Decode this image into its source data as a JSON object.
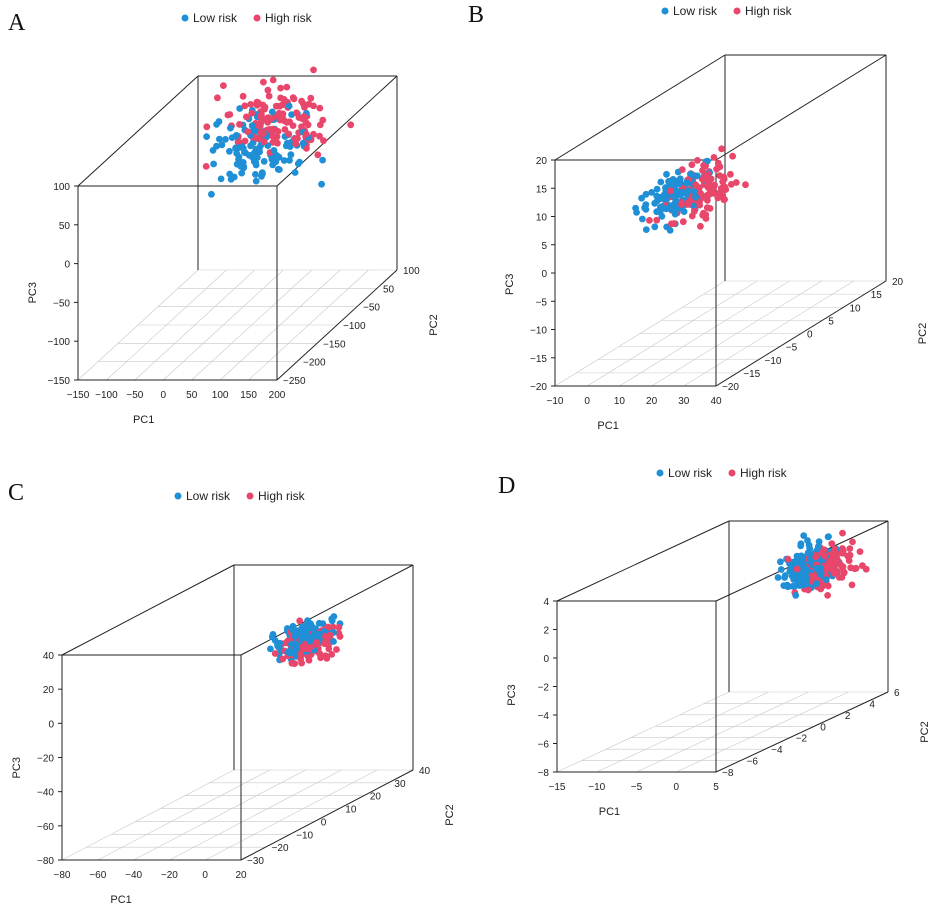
{
  "figure": {
    "panel_count": 4
  },
  "colors": {
    "low": "#1f8fd6",
    "high": "#e8466a"
  },
  "chart_data": [
    {
      "panel": "A",
      "type": "scatter",
      "legend": [
        "Low risk",
        "High risk"
      ],
      "xlabel": "PC1",
      "ylabel": "PC2",
      "zlabel": "PC3",
      "x_ticks": [
        "−150",
        "−100",
        "−50",
        "0",
        "50",
        "100",
        "150",
        "200"
      ],
      "y_ticks": [
        "−250",
        "−200",
        "−150",
        "−100",
        "−50",
        "50",
        "100"
      ],
      "z_ticks": [
        "−150",
        "−100",
        "−50",
        "0",
        "50",
        "100"
      ],
      "xlim": [
        -150,
        200
      ],
      "ylim": [
        -250,
        100
      ],
      "zlim": [
        -150,
        100
      ],
      "cluster": {
        "low_center": [
          30,
          -20,
          60
        ],
        "high_center": [
          50,
          0,
          85
        ],
        "spread": [
          90,
          70,
          35
        ]
      },
      "n_points": 240
    },
    {
      "panel": "B",
      "type": "scatter",
      "legend": [
        "Low risk",
        "High risk"
      ],
      "xlabel": "PC1",
      "ylabel": "PC2",
      "zlabel": "PC3",
      "x_ticks": [
        "−10",
        "0",
        "10",
        "20",
        "30",
        "40"
      ],
      "y_ticks": [
        "−20",
        "−15",
        "−10",
        "−5",
        "0",
        "5",
        "10",
        "15",
        "20"
      ],
      "z_ticks": [
        "−20",
        "−15",
        "−10",
        "−5",
        "0",
        "5",
        "10",
        "15",
        "20"
      ],
      "xlim": [
        -10,
        40
      ],
      "ylim": [
        -20,
        20
      ],
      "zlim": [
        -20,
        20
      ],
      "cluster": {
        "low_center": [
          12,
          -8,
          8
        ],
        "high_center": [
          16,
          -6,
          8
        ],
        "spread": [
          8,
          6,
          4
        ]
      },
      "n_points": 240
    },
    {
      "panel": "C",
      "type": "scatter",
      "legend": [
        "Low risk",
        "High risk"
      ],
      "xlabel": "PC1",
      "ylabel": "PC2",
      "zlabel": "PC3",
      "x_ticks": [
        "−80",
        "−60",
        "−40",
        "−20",
        "0",
        "20"
      ],
      "y_ticks": [
        "−30",
        "−20",
        "−10",
        "0",
        "10",
        "20",
        "30",
        "40"
      ],
      "z_ticks": [
        "−80",
        "−60",
        "−40",
        "−20",
        "0",
        "20",
        "40"
      ],
      "xlim": [
        -80,
        20
      ],
      "ylim": [
        -30,
        40
      ],
      "zlim": [
        -80,
        40
      ],
      "cluster": {
        "low_center": [
          0,
          10,
          20
        ],
        "high_center": [
          2,
          12,
          15
        ],
        "spread": [
          12,
          10,
          8
        ]
      },
      "n_points": 240
    },
    {
      "panel": "D",
      "type": "scatter",
      "legend": [
        "Low risk",
        "High risk"
      ],
      "xlabel": "PC1",
      "ylabel": "PC2",
      "zlabel": "PC3",
      "x_ticks": [
        "−15",
        "−10",
        "−5",
        "0",
        "5"
      ],
      "y_ticks": [
        "−8",
        "−6",
        "−4",
        "−2",
        "0",
        "2",
        "4",
        "6"
      ],
      "z_ticks": [
        "−8",
        "−6",
        "−4",
        "−2",
        "0",
        "2",
        "4"
      ],
      "xlim": [
        -15,
        5
      ],
      "ylim": [
        -8,
        6
      ],
      "zlim": [
        -8,
        4
      ],
      "cluster": {
        "low_center": [
          1,
          2,
          2.5
        ],
        "high_center": [
          2,
          3,
          2
        ],
        "spread": [
          2.5,
          2.2,
          1.4
        ]
      },
      "n_points": 240
    }
  ]
}
